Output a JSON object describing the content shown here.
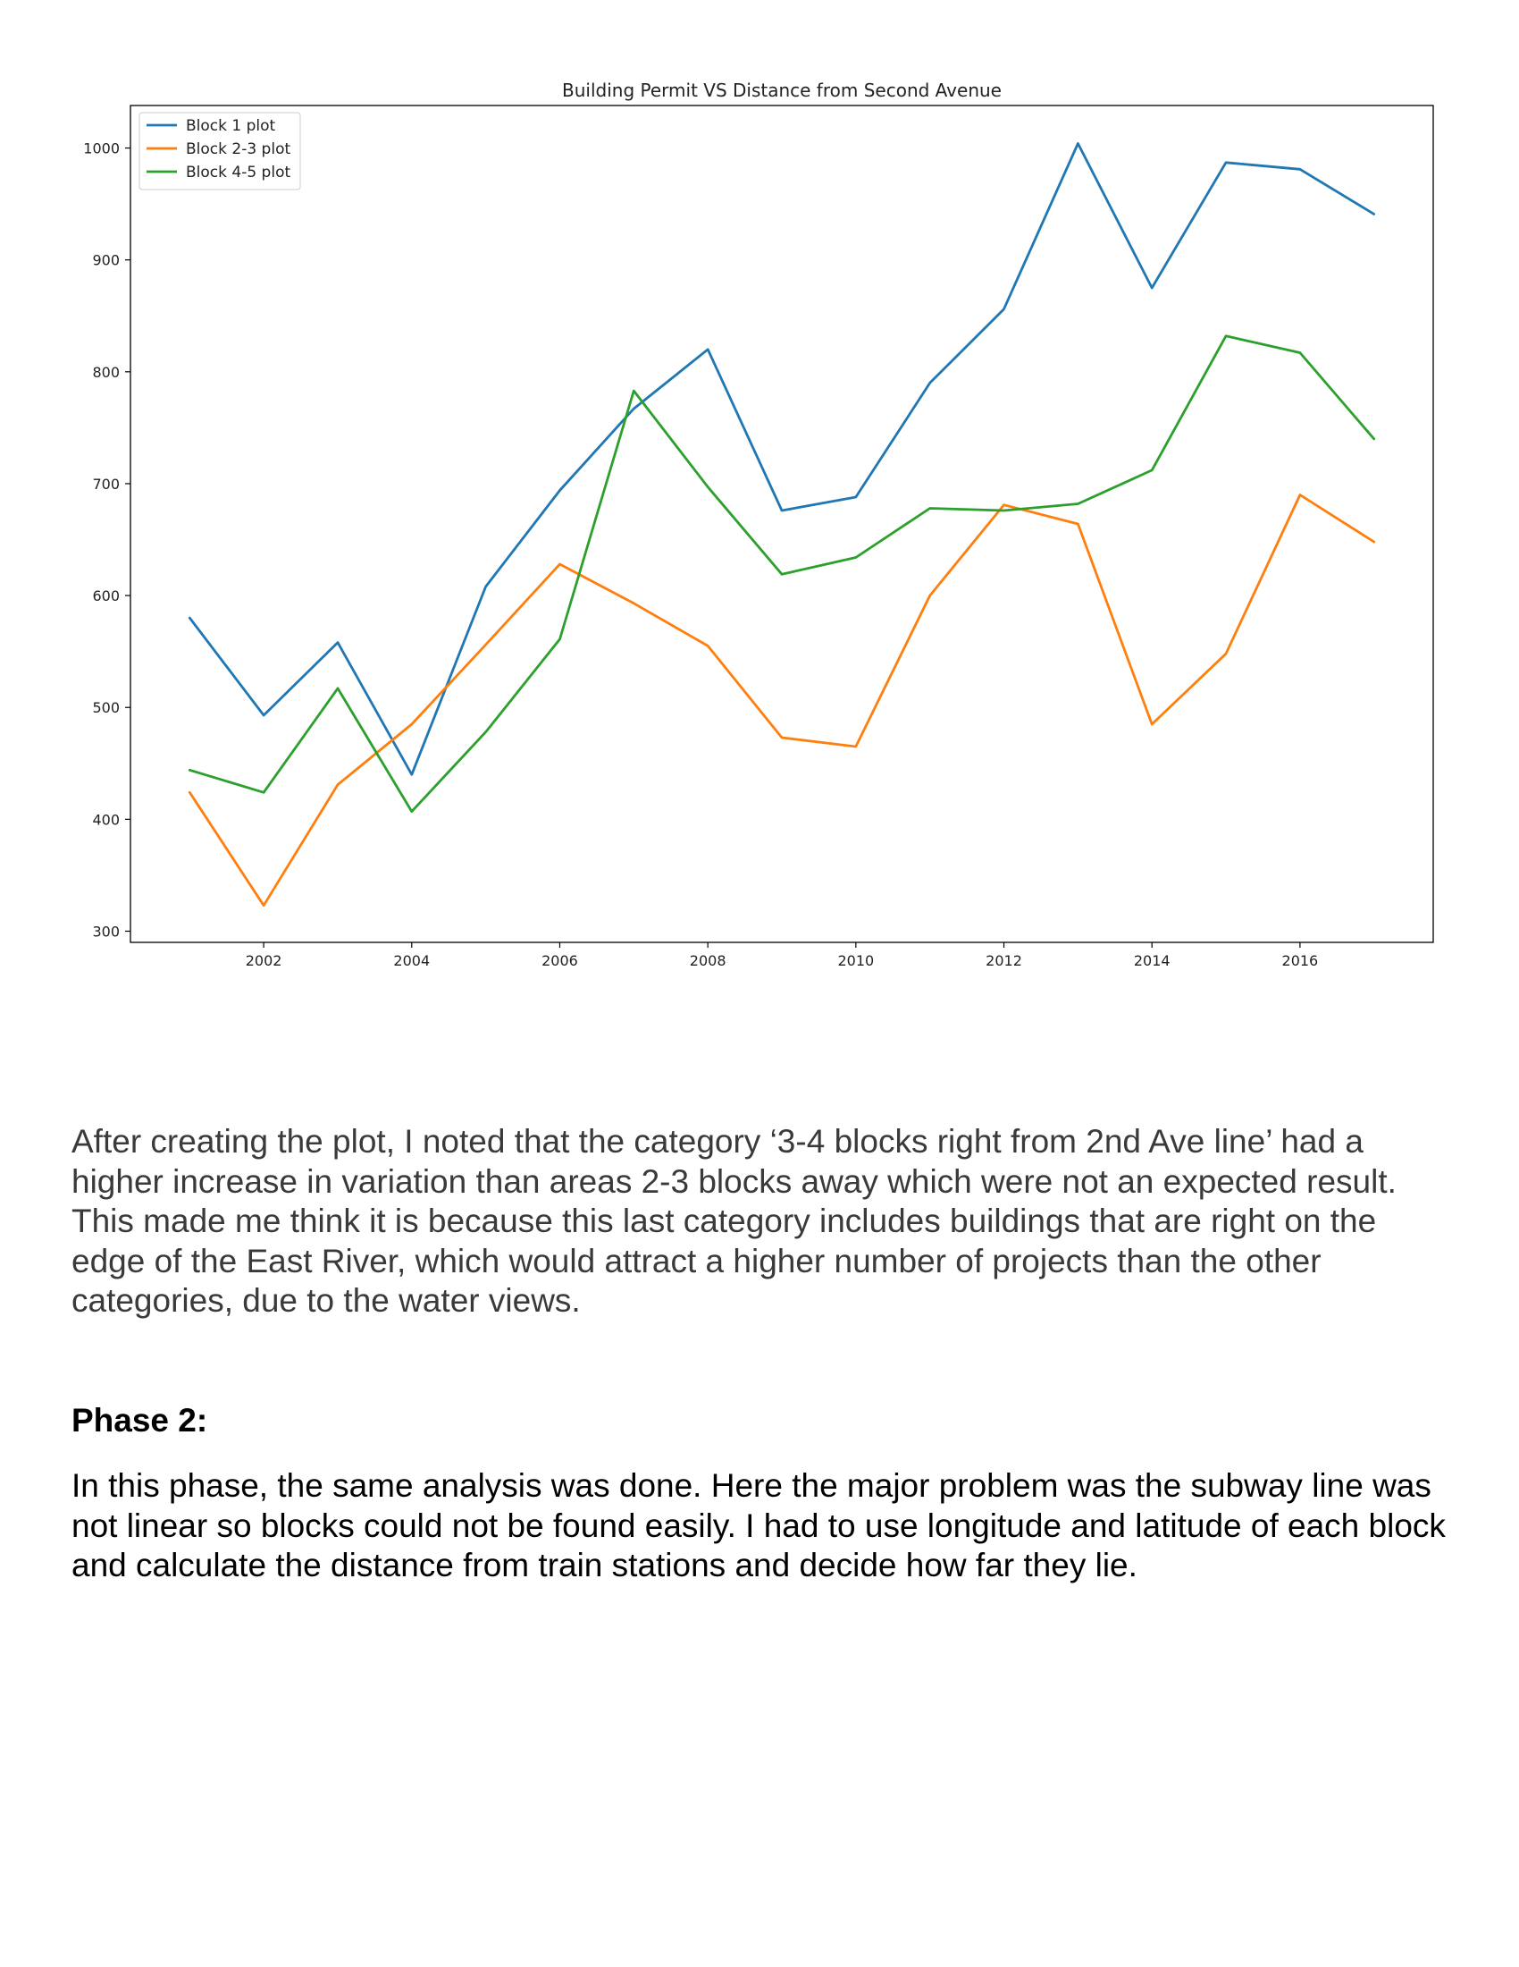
{
  "chart_data": {
    "type": "line",
    "title": "Building Permit VS Distance from Second Avenue",
    "x": [
      2001,
      2002,
      2003,
      2004,
      2005,
      2006,
      2007,
      2008,
      2009,
      2010,
      2011,
      2012,
      2013,
      2014,
      2015,
      2016,
      2017
    ],
    "series": [
      {
        "name": "Block 1 plot",
        "color": "#1f77b4",
        "values": [
          580,
          493,
          558,
          440,
          608,
          694,
          767,
          820,
          676,
          688,
          790,
          856,
          1004,
          875,
          987,
          981,
          941
        ]
      },
      {
        "name": "Block 2-3 plot",
        "color": "#ff7f0e",
        "values": [
          424,
          323,
          431,
          485,
          556,
          628,
          593,
          555,
          473,
          465,
          600,
          681,
          664,
          485,
          548,
          690,
          648
        ]
      },
      {
        "name": "Block 4-5 plot",
        "color": "#2ca02c",
        "values": [
          444,
          424,
          517,
          407,
          478,
          561,
          783,
          697,
          619,
          634,
          678,
          676,
          682,
          712,
          832,
          817,
          740
        ]
      }
    ],
    "xticks": [
      2002,
      2004,
      2006,
      2008,
      2010,
      2012,
      2014,
      2016
    ],
    "yticks": [
      300,
      400,
      500,
      600,
      700,
      800,
      900,
      1000
    ],
    "xlim": [
      2000.2,
      2017.8
    ],
    "ylim": [
      290,
      1038
    ],
    "xlabel": "",
    "ylabel": "",
    "grid": false,
    "legend": "top-left"
  },
  "text": {
    "paragraph_1": "After creating the plot, I noted that the category ‘3-4 blocks right from 2nd Ave line’ had a higher increase in variation than areas 2-3 blocks away which were not an expected result. This made me think it is because this last category includes buildings that are right on the edge of the East River, which would attract a higher number of projects than the other categories, due to the water views.",
    "phase_heading": "Phase 2:",
    "paragraph_2": "In this phase, the same analysis was done. Here the major problem was the subway line was not linear so blocks could not be found easily. I had to use longitude and latitude of each block and calculate the distance from train stations and decide how far they lie."
  }
}
